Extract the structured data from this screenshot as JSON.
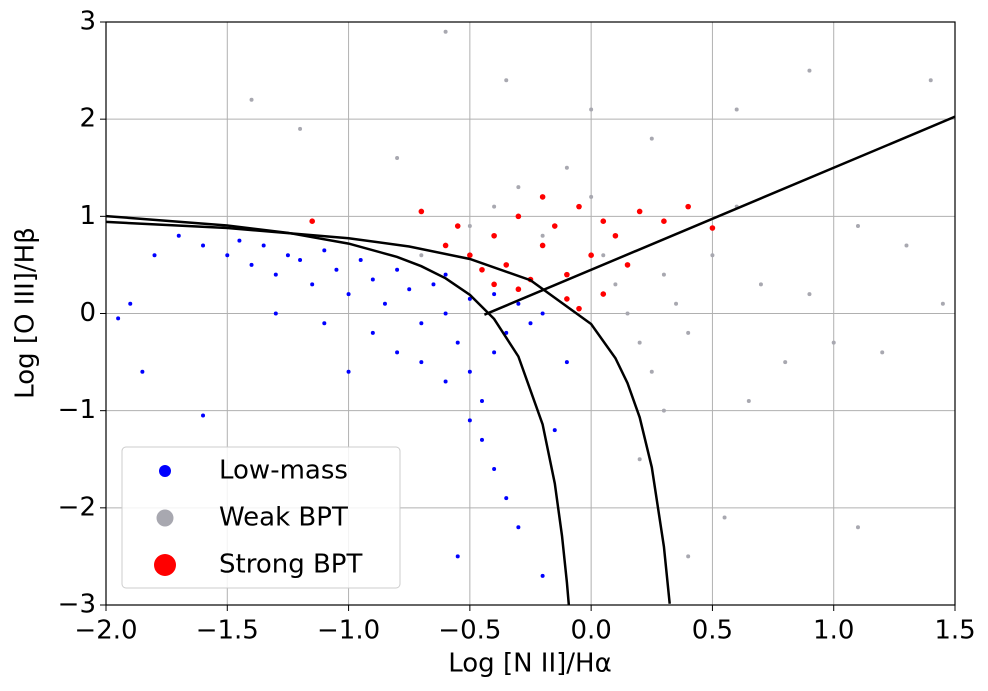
{
  "chart_data": {
    "type": "scatter",
    "xlabel": "Log [N II]/Hα",
    "ylabel": "Log [O III]/Hβ",
    "xlim": [
      -2,
      1.5
    ],
    "ylim": [
      -3,
      3
    ],
    "grid": true,
    "legend": "lower left",
    "xticks": [
      {
        "value": -2,
        "label": "−2.0"
      },
      {
        "value": -1.5,
        "label": "−1.5"
      },
      {
        "value": -1,
        "label": "−1.0"
      },
      {
        "value": -0.5,
        "label": "−0.5"
      },
      {
        "value": 0,
        "label": "0.0"
      },
      {
        "value": 0.5,
        "label": "0.5"
      },
      {
        "value": 1,
        "label": "1.0"
      },
      {
        "value": 1.5,
        "label": "1.5"
      }
    ],
    "yticks": [
      {
        "value": -3,
        "label": "−3"
      },
      {
        "value": -2,
        "label": "−2"
      },
      {
        "value": -1,
        "label": "−1"
      },
      0,
      1,
      2,
      3
    ],
    "series": [
      {
        "name": "Low-mass",
        "color": "#0000ff",
        "x": [
          -1.9,
          -1.8,
          -1.7,
          -1.6,
          -1.5,
          -1.45,
          -1.4,
          -1.35,
          -1.3,
          -1.25,
          -1.2,
          -1.15,
          -1.1,
          -1.05,
          -1.0,
          -0.95,
          -0.9,
          -0.85,
          -0.8,
          -0.75,
          -0.7,
          -0.65,
          -0.6,
          -0.55,
          -0.5,
          -0.45,
          -0.5,
          -0.4,
          -0.35,
          -0.3,
          -0.25,
          -0.2,
          -0.45,
          -0.4,
          -0.35,
          -0.3,
          -0.5,
          -0.6,
          -0.7,
          -0.8,
          -0.9,
          -1.1,
          -1.3,
          -1.6,
          -1.85,
          -1.95,
          -0.55,
          -0.15,
          -0.1,
          -0.6,
          -0.4,
          -1.0,
          -0.2
        ],
        "y": [
          0.1,
          0.6,
          0.8,
          0.7,
          0.6,
          0.75,
          0.5,
          0.7,
          0.4,
          0.6,
          0.55,
          0.3,
          0.65,
          0.45,
          0.2,
          0.55,
          0.35,
          0.1,
          0.45,
          0.25,
          -0.1,
          0.3,
          0.0,
          -0.3,
          -0.6,
          -0.9,
          0.15,
          -0.4,
          -0.2,
          0.1,
          -0.1,
          0.0,
          -1.3,
          -1.6,
          -1.9,
          -2.2,
          -1.1,
          -0.7,
          -0.5,
          -0.4,
          -0.2,
          -0.1,
          0.0,
          -1.05,
          -0.6,
          -0.05,
          -2.5,
          -1.2,
          -0.5,
          0.4,
          0.2,
          -0.6,
          -2.7
        ]
      },
      {
        "name": "Weak BPT",
        "color": "#a8a8b0",
        "x": [
          -0.7,
          -0.6,
          -0.5,
          -0.4,
          -0.3,
          -0.2,
          -0.1,
          0.0,
          0.05,
          0.1,
          0.15,
          0.2,
          0.25,
          0.3,
          0.35,
          0.4,
          0.5,
          0.6,
          0.7,
          0.8,
          0.9,
          1.0,
          1.1,
          1.2,
          1.3,
          1.45,
          -1.4,
          -1.2,
          -0.6,
          -0.35,
          0.0,
          0.25,
          0.6,
          0.9,
          1.4,
          0.2,
          0.4,
          0.55,
          1.1,
          -0.8,
          0.3,
          0.65
        ],
        "y": [
          0.6,
          0.7,
          0.9,
          1.1,
          1.3,
          0.8,
          1.5,
          1.2,
          0.6,
          0.3,
          0.0,
          -0.3,
          -0.6,
          0.4,
          0.1,
          -0.2,
          0.6,
          1.1,
          0.3,
          -0.5,
          0.2,
          -0.3,
          0.9,
          -0.4,
          0.7,
          0.1,
          2.2,
          1.9,
          2.9,
          2.4,
          2.1,
          1.8,
          2.1,
          2.5,
          2.4,
          -1.5,
          -2.5,
          -2.1,
          -2.2,
          1.6,
          -1.0,
          -0.9
        ]
      },
      {
        "name": "Strong BPT",
        "color": "#ff0000",
        "x": [
          -1.15,
          -0.7,
          -0.6,
          -0.5,
          -0.45,
          -0.4,
          -0.35,
          -0.3,
          -0.25,
          -0.2,
          -0.15,
          -0.1,
          -0.05,
          0.0,
          0.05,
          0.1,
          -0.3,
          -0.55,
          -0.2,
          -0.1,
          0.2,
          0.3,
          0.4,
          0.5,
          0.15,
          -0.4,
          -0.05,
          0.05
        ],
        "y": [
          0.95,
          1.05,
          0.7,
          0.6,
          0.45,
          0.8,
          0.5,
          1.0,
          0.35,
          0.7,
          0.9,
          0.4,
          1.1,
          0.6,
          0.2,
          0.8,
          0.25,
          0.9,
          1.2,
          0.15,
          1.05,
          0.95,
          1.1,
          0.88,
          0.5,
          0.3,
          0.05,
          0.95
        ]
      }
    ],
    "lines": [
      {
        "color": "#000000",
        "x": [
          -2.0,
          -1.5,
          -1.25,
          -1.0,
          -0.8,
          -0.7,
          -0.6,
          -0.5,
          -0.4,
          -0.3,
          -0.2,
          -0.15,
          -0.12,
          -0.1,
          -0.092
        ],
        "y": [
          1.002,
          0.906,
          0.831,
          0.719,
          0.582,
          0.487,
          0.362,
          0.191,
          -0.056,
          -0.443,
          -1.14,
          -1.75,
          -2.288,
          -2.767,
          -2.996
        ]
      },
      {
        "color": "#000000",
        "x": [
          -2.0,
          -1.5,
          -1.0,
          -0.75,
          -0.5,
          -0.25,
          0.0,
          0.1,
          0.15,
          0.2,
          0.25,
          0.3,
          0.324
        ],
        "y": [
          0.943,
          0.88,
          0.775,
          0.69,
          0.561,
          0.343,
          -0.108,
          -0.459,
          -0.716,
          -1.069,
          -1.583,
          -2.398,
          -2.988
        ]
      },
      {
        "color": "#000000",
        "x": [
          -0.44,
          1.5
        ],
        "y": [
          -0.012,
          2.025
        ]
      }
    ]
  }
}
